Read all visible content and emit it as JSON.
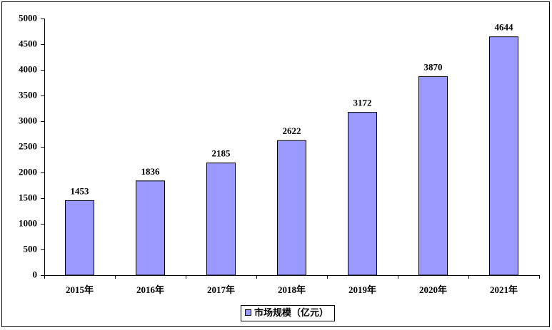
{
  "chart_data": {
    "type": "bar",
    "categories": [
      "2015年",
      "2016年",
      "2017年",
      "2018年",
      "2019年",
      "2020年",
      "2021年"
    ],
    "series": [
      {
        "name": "市场规模（亿元）",
        "color": "#9999ff",
        "values": [
          1453,
          1836,
          2185,
          2622,
          3172,
          3870,
          4644
        ]
      }
    ],
    "ylim": [
      0,
      5000
    ],
    "yticks": [
      0,
      500,
      1000,
      1500,
      2000,
      2500,
      3000,
      3500,
      4000,
      4500,
      5000
    ],
    "grid": false,
    "legend": "bottom",
    "data_labels": true
  }
}
